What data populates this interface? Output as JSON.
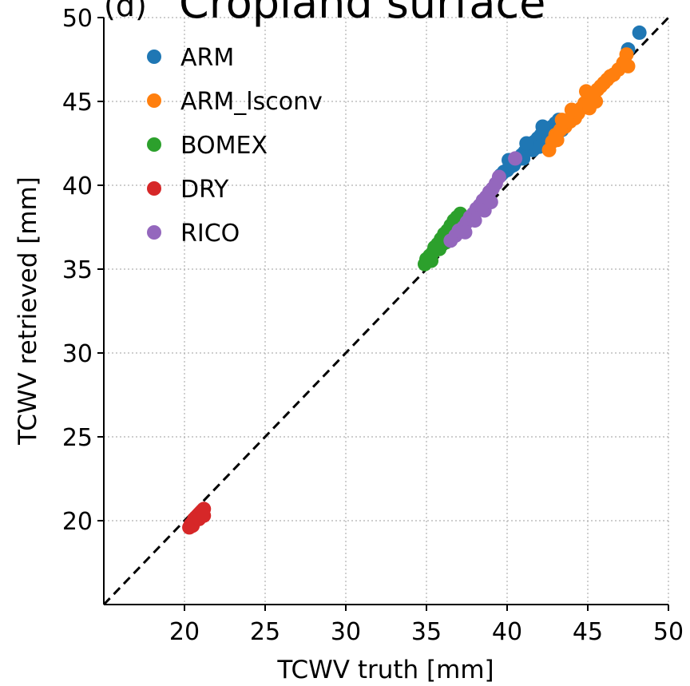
{
  "chart_data": {
    "type": "scatter",
    "panel_label": "(d)",
    "title": "Cropland surface",
    "xlabel": "TCWV truth [mm]",
    "ylabel": "TCWV retrieved [mm]",
    "xlim": [
      15,
      50
    ],
    "ylim": [
      15,
      50
    ],
    "xticks": [
      20,
      25,
      30,
      35,
      40,
      45,
      50
    ],
    "yticks": [
      20,
      25,
      30,
      35,
      40,
      45,
      50
    ],
    "grid": "dotted",
    "legend_placement": "top-left",
    "reference_line": "y = x (dashed)",
    "series": [
      {
        "name": "ARM",
        "color": "#1f77b4",
        "points": [
          [
            39.8,
            40.8
          ],
          [
            40.0,
            40.9
          ],
          [
            40.2,
            41.1
          ],
          [
            40.4,
            41.2
          ],
          [
            40.5,
            41.4
          ],
          [
            40.7,
            41.6
          ],
          [
            40.9,
            41.8
          ],
          [
            41.1,
            42.0
          ],
          [
            41.3,
            42.2
          ],
          [
            41.5,
            42.4
          ],
          [
            41.7,
            42.6
          ],
          [
            41.9,
            42.8
          ],
          [
            42.1,
            43.0
          ],
          [
            42.3,
            43.2
          ],
          [
            42.5,
            43.4
          ],
          [
            42.8,
            43.5
          ],
          [
            43.0,
            43.7
          ],
          [
            43.2,
            43.9
          ],
          [
            41.0,
            41.6
          ],
          [
            41.6,
            42.1
          ],
          [
            42.0,
            42.3
          ],
          [
            42.6,
            42.9
          ],
          [
            43.4,
            43.3
          ],
          [
            39.6,
            40.6
          ],
          [
            40.1,
            41.5
          ],
          [
            41.2,
            42.5
          ],
          [
            42.2,
            43.5
          ],
          [
            47.5,
            48.1
          ],
          [
            48.2,
            49.1
          ]
        ]
      },
      {
        "name": "ARM_lsconv",
        "color": "#ff7f0e",
        "points": [
          [
            42.6,
            42.1
          ],
          [
            42.8,
            42.6
          ],
          [
            43.0,
            43.0
          ],
          [
            43.3,
            43.3
          ],
          [
            43.6,
            43.5
          ],
          [
            43.9,
            43.8
          ],
          [
            44.2,
            44.0
          ],
          [
            44.4,
            44.3
          ],
          [
            44.6,
            44.6
          ],
          [
            44.8,
            44.9
          ],
          [
            45.0,
            45.1
          ],
          [
            45.2,
            45.3
          ],
          [
            45.4,
            45.5
          ],
          [
            45.6,
            45.7
          ],
          [
            45.8,
            45.9
          ],
          [
            46.0,
            46.1
          ],
          [
            46.2,
            46.3
          ],
          [
            46.4,
            46.5
          ],
          [
            46.6,
            46.6
          ],
          [
            45.1,
            44.6
          ],
          [
            45.5,
            45.0
          ],
          [
            44.0,
            44.5
          ],
          [
            43.4,
            43.9
          ],
          [
            44.9,
            45.6
          ],
          [
            46.9,
            46.9
          ],
          [
            47.2,
            47.3
          ],
          [
            47.4,
            47.8
          ],
          [
            47.5,
            47.1
          ],
          [
            43.1,
            42.7
          ]
        ]
      },
      {
        "name": "BOMEX",
        "color": "#2ca02c",
        "points": [
          [
            34.9,
            35.3
          ],
          [
            35.0,
            35.6
          ],
          [
            35.2,
            35.8
          ],
          [
            35.4,
            36.0
          ],
          [
            35.5,
            36.3
          ],
          [
            35.7,
            36.5
          ],
          [
            35.9,
            36.8
          ],
          [
            36.1,
            37.1
          ],
          [
            36.3,
            37.3
          ],
          [
            36.5,
            37.6
          ],
          [
            36.7,
            37.9
          ],
          [
            36.9,
            38.1
          ],
          [
            37.1,
            38.3
          ],
          [
            35.3,
            35.5
          ],
          [
            35.8,
            36.2
          ],
          [
            36.2,
            36.6
          ],
          [
            36.6,
            37.0
          ],
          [
            37.0,
            37.5
          ]
        ]
      },
      {
        "name": "DRY",
        "color": "#d62728",
        "points": [
          [
            20.3,
            19.6
          ],
          [
            20.4,
            19.8
          ],
          [
            20.5,
            19.9
          ],
          [
            20.6,
            20.1
          ],
          [
            20.7,
            20.2
          ],
          [
            20.8,
            20.3
          ],
          [
            20.9,
            20.4
          ],
          [
            21.0,
            20.5
          ],
          [
            21.1,
            20.6
          ],
          [
            21.2,
            20.7
          ],
          [
            20.5,
            19.7
          ],
          [
            20.9,
            20.1
          ],
          [
            21.2,
            20.3
          ]
        ]
      },
      {
        "name": "RICO",
        "color": "#9467bd",
        "points": [
          [
            36.5,
            36.7
          ],
          [
            36.8,
            37.0
          ],
          [
            37.0,
            37.3
          ],
          [
            37.3,
            37.5
          ],
          [
            37.5,
            37.8
          ],
          [
            37.7,
            38.1
          ],
          [
            37.9,
            38.3
          ],
          [
            38.1,
            38.6
          ],
          [
            38.3,
            38.8
          ],
          [
            38.5,
            39.1
          ],
          [
            38.7,
            39.3
          ],
          [
            38.9,
            39.6
          ],
          [
            39.1,
            39.8
          ],
          [
            39.3,
            40.1
          ],
          [
            39.5,
            40.5
          ],
          [
            37.4,
            37.2
          ],
          [
            38.0,
            37.9
          ],
          [
            38.6,
            38.5
          ],
          [
            39.0,
            39.0
          ],
          [
            40.5,
            41.6
          ]
        ]
      }
    ]
  }
}
